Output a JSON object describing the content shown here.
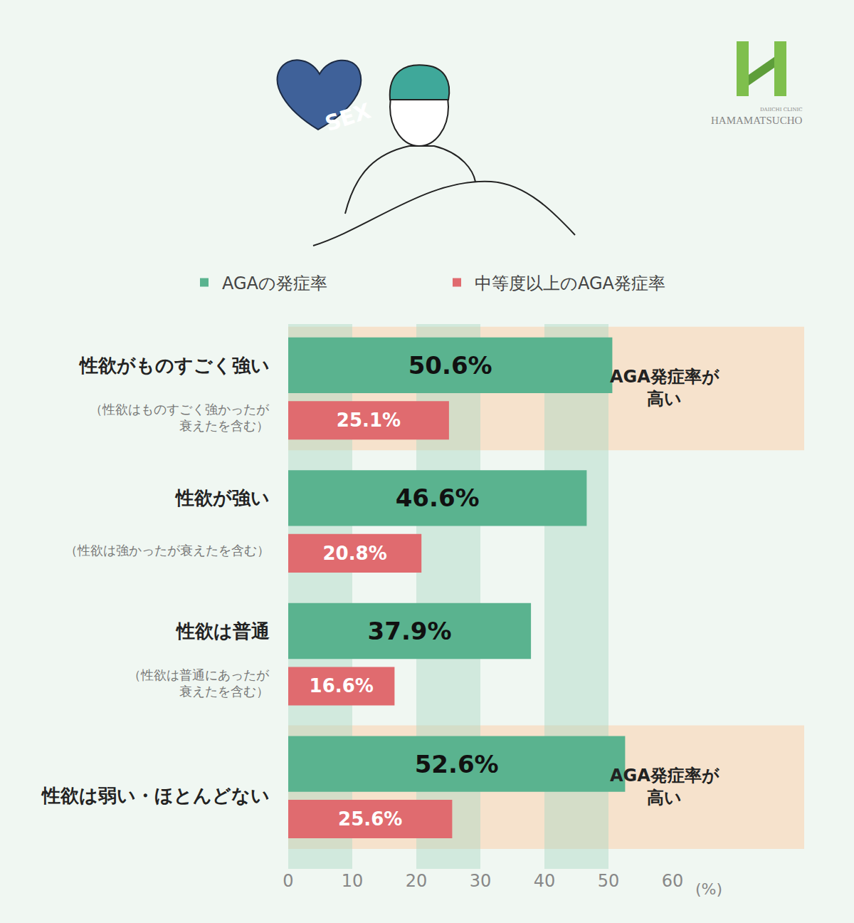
{
  "chart_data": {
    "type": "bar",
    "orientation": "horizontal",
    "categories": [
      "性欲がものすごく強い",
      "性欲が強い",
      "性欲は普通",
      "性欲は弱い・ほとんどない"
    ],
    "category_notes": [
      [
        "（性欲はものすごく強かったが",
        "衰えたを含む）"
      ],
      [
        "（性欲は強かったが衰えたを含む）"
      ],
      [
        "（性欲は普通にあったが",
        "衰えたを含む）"
      ],
      null
    ],
    "series": [
      {
        "name": "AGAの発症率",
        "color": "#5ab38f",
        "values": [
          50.6,
          46.6,
          37.9,
          52.6
        ],
        "value_labels": [
          "50.6%",
          "46.6%",
          "37.9%",
          "52.6%"
        ]
      },
      {
        "name": "中等度以上のAGA発症率",
        "color": "#e06b6f",
        "values": [
          25.1,
          20.8,
          16.6,
          25.6
        ],
        "value_labels": [
          "25.1%",
          "20.8%",
          "16.6%",
          "25.6%"
        ]
      }
    ],
    "xlim": [
      0,
      60
    ],
    "xticks": [
      0,
      10,
      20,
      30,
      40,
      50,
      60
    ],
    "x_label": "(%)",
    "grid": true,
    "legend": "top",
    "data_labels": true,
    "tick_labels": "x",
    "annotations": [
      {
        "category": "性欲がものすごく強い",
        "text": [
          "AGA発症率が",
          "高い"
        ]
      },
      {
        "category": "性欲は弱い・ほとんどない",
        "text": [
          "AGA発症率が",
          "高い"
        ]
      }
    ],
    "illustration_text": "SEX",
    "logo": {
      "name": "HAMAMATSUCHO",
      "subname": "DAIICHI CLINIC"
    }
  }
}
